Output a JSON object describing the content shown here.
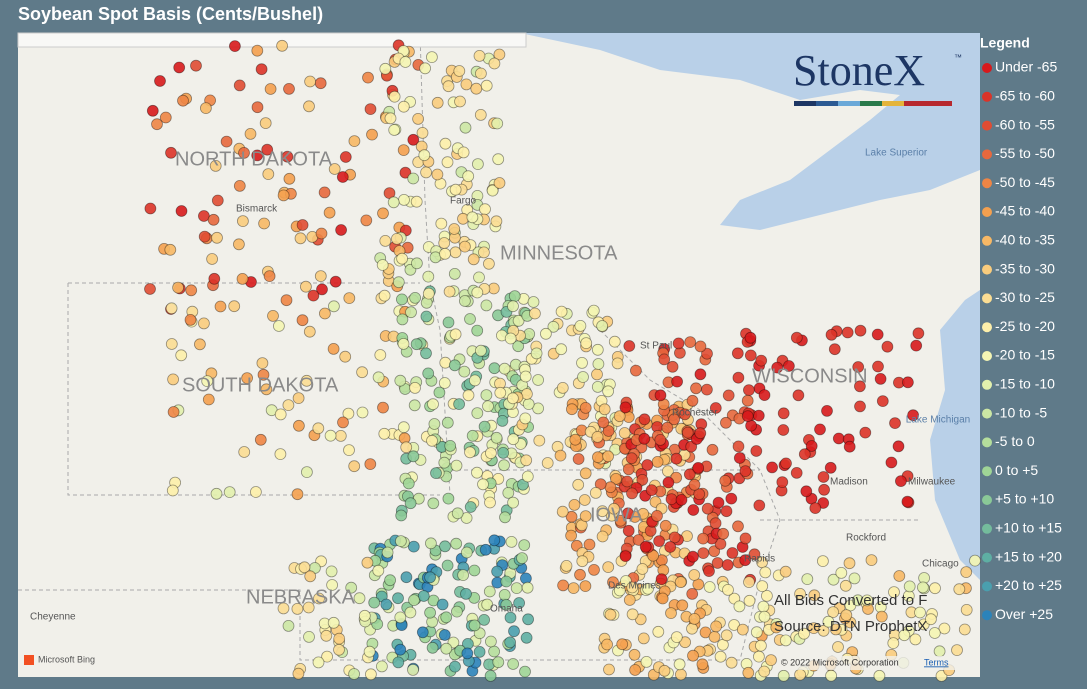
{
  "header": {
    "title": "Soybean Spot Basis (Cents/Bushel)"
  },
  "logo": {
    "name": "StoneX",
    "mark": "™"
  },
  "legend": {
    "title": "Legend",
    "items": [
      {
        "label": "Under -65",
        "color": "#d7191c"
      },
      {
        "label": "-65 to -60",
        "color": "#db3328"
      },
      {
        "label": "-60 to -55",
        "color": "#e04c33"
      },
      {
        "label": "-55 to -50",
        "color": "#e7683d"
      },
      {
        "label": "-50 to -45",
        "color": "#ee8545"
      },
      {
        "label": "-45 to -40",
        "color": "#f4a04f"
      },
      {
        "label": "-40 to -35",
        "color": "#f7b865"
      },
      {
        "label": "-35 to -30",
        "color": "#f9cc7d"
      },
      {
        "label": "-30 to -25",
        "color": "#fbdd93"
      },
      {
        "label": "-25 to -20",
        "color": "#fdefaa"
      },
      {
        "label": "-20 to -15",
        "color": "#f4f5b3"
      },
      {
        "label": "-15 to -10",
        "color": "#e2f0ad"
      },
      {
        "label": "-10 to -5",
        "color": "#cce7a4"
      },
      {
        "label": "-5 to 0",
        "color": "#b5de9c"
      },
      {
        "label": "0 to +5",
        "color": "#9fd596"
      },
      {
        "label": "+5 to +10",
        "color": "#8ac997"
      },
      {
        "label": "+10 to +15",
        "color": "#74bc9c"
      },
      {
        "label": "+15 to +20",
        "color": "#5eafa3"
      },
      {
        "label": "+20 to +25",
        "color": "#4a9fae"
      },
      {
        "label": "Over +25",
        "color": "#2b83ba"
      }
    ]
  },
  "map": {
    "states": [
      "NORTH DAKOTA",
      "SOUTH DAKOTA",
      "MINNESOTA",
      "WISCONSIN",
      "NEBRASKA",
      "IOWA"
    ],
    "cities": [
      "Bismarck",
      "Fargo",
      "St Paul",
      "Rochester",
      "Madison",
      "Milwaukee",
      "Rockford",
      "Chicago",
      "Rapids",
      "Des Moines",
      "Omaha",
      "Cheyenne"
    ],
    "water": [
      "Lake Superior",
      "Lake Michigan"
    ]
  },
  "notes": [
    "All Bids Converted to F",
    "Source: DTN ProphetX"
  ],
  "footer": {
    "provider": "Microsoft Bing",
    "copyright": "© 2022 Microsoft Corporation",
    "terms": "Terms"
  }
}
